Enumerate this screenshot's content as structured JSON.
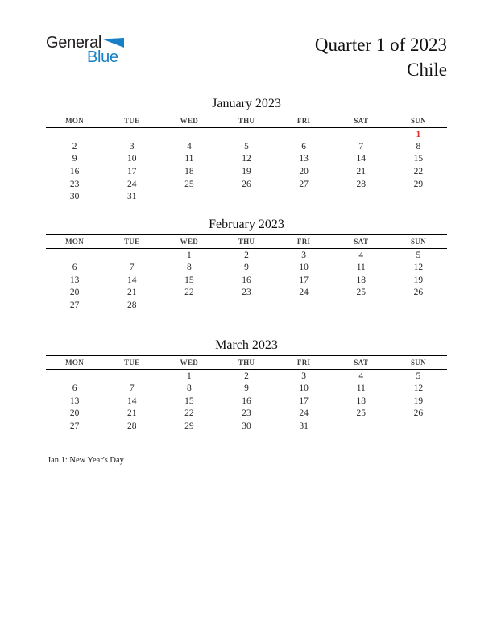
{
  "header": {
    "logo": {
      "text_top": "General",
      "text_bottom": "Blue",
      "blue_color": "#1580c6"
    },
    "title_line1": "Quarter 1 of 2023",
    "title_line2": "Chile"
  },
  "calendar": {
    "weekdays": [
      "MON",
      "TUE",
      "WED",
      "THU",
      "FRI",
      "SAT",
      "SUN"
    ],
    "holiday_color": "#e22828",
    "months": [
      {
        "title": "January 2023",
        "holiday_days": [
          1
        ],
        "weeks": [
          [
            "",
            "",
            "",
            "",
            "",
            "",
            "1"
          ],
          [
            "2",
            "3",
            "4",
            "5",
            "6",
            "7",
            "8"
          ],
          [
            "9",
            "10",
            "11",
            "12",
            "13",
            "14",
            "15"
          ],
          [
            "16",
            "17",
            "18",
            "19",
            "20",
            "21",
            "22"
          ],
          [
            "23",
            "24",
            "25",
            "26",
            "27",
            "28",
            "29"
          ],
          [
            "30",
            "31",
            "",
            "",
            "",
            "",
            ""
          ]
        ]
      },
      {
        "title": "February 2023",
        "holiday_days": [],
        "weeks": [
          [
            "",
            "",
            "1",
            "2",
            "3",
            "4",
            "5"
          ],
          [
            "6",
            "7",
            "8",
            "9",
            "10",
            "11",
            "12"
          ],
          [
            "13",
            "14",
            "15",
            "16",
            "17",
            "18",
            "19"
          ],
          [
            "20",
            "21",
            "22",
            "23",
            "24",
            "25",
            "26"
          ],
          [
            "27",
            "28",
            "",
            "",
            "",
            "",
            ""
          ],
          [
            "",
            "",
            "",
            "",
            "",
            "",
            ""
          ]
        ]
      },
      {
        "title": "March 2023",
        "holiday_days": [],
        "weeks": [
          [
            "",
            "",
            "1",
            "2",
            "3",
            "4",
            "5"
          ],
          [
            "6",
            "7",
            "8",
            "9",
            "10",
            "11",
            "12"
          ],
          [
            "13",
            "14",
            "15",
            "16",
            "17",
            "18",
            "19"
          ],
          [
            "20",
            "21",
            "22",
            "23",
            "24",
            "25",
            "26"
          ],
          [
            "27",
            "28",
            "29",
            "30",
            "31",
            "",
            ""
          ],
          [
            "",
            "",
            "",
            "",
            "",
            "",
            ""
          ]
        ]
      }
    ]
  },
  "footnote": "Jan 1: New Year's Day"
}
